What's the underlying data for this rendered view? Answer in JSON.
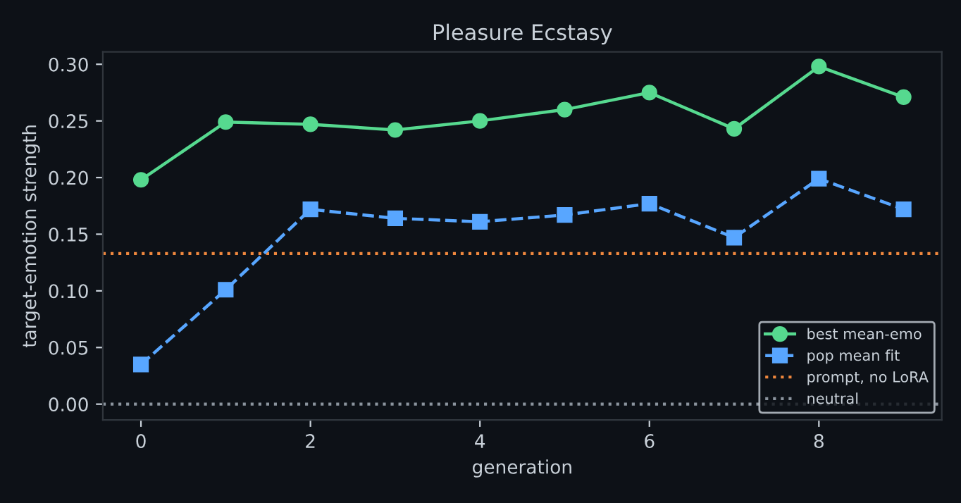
{
  "chart_data": {
    "type": "line",
    "title": "Pleasure Ecstasy",
    "xlabel": "generation",
    "ylabel": "target-emotion strength",
    "x": [
      0,
      1,
      2,
      3,
      4,
      5,
      6,
      7,
      8,
      9
    ],
    "series": [
      {
        "name": "best mean-emo",
        "color": "#56d98f",
        "marker": "circle",
        "line_style": "solid",
        "values": [
          0.198,
          0.249,
          0.247,
          0.242,
          0.25,
          0.26,
          0.275,
          0.243,
          0.298,
          0.271
        ]
      },
      {
        "name": "pop mean fit",
        "color": "#58a6ff",
        "marker": "square",
        "line_style": "dashed",
        "values": [
          0.035,
          0.101,
          0.172,
          0.164,
          0.161,
          0.167,
          0.177,
          0.147,
          0.199,
          0.172
        ]
      }
    ],
    "ref_lines": [
      {
        "axis": "y",
        "value": 0.133,
        "label": "prompt, no LoRA",
        "color": "#f0883e",
        "line_style": "dotted"
      },
      {
        "axis": "y",
        "value": 0,
        "label": "neutral",
        "color": "#8b949e",
        "line_style": "dotted"
      }
    ],
    "xlim": [
      -0.45,
      9.45
    ],
    "ylim": [
      -0.014,
      0.311
    ],
    "xticks": [
      0,
      2,
      4,
      6,
      8
    ],
    "yticks": [
      {
        "value": 0,
        "label": "0.00"
      },
      {
        "value": 0.05,
        "label": "0.05"
      },
      {
        "value": 0.1,
        "label": "0.10"
      },
      {
        "value": 0.15,
        "label": "0.15"
      },
      {
        "value": 0.2,
        "label": "0.20"
      },
      {
        "value": 0.25,
        "label": "0.25"
      },
      {
        "value": 0.3,
        "label": "0.30"
      }
    ],
    "grid": false,
    "legend": "bottom right"
  }
}
